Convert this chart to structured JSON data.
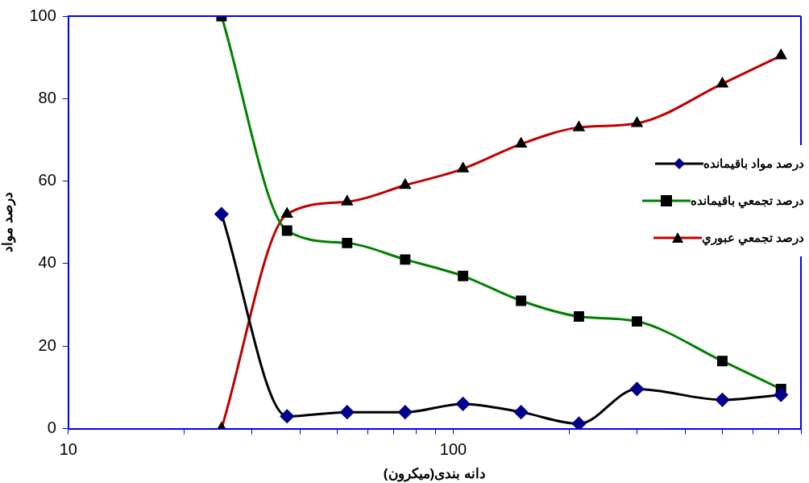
{
  "chart_data": {
    "type": "line",
    "xlabel": "دانه بندی(میکرون)",
    "ylabel": "درصد مواد",
    "log": "x",
    "grid": false,
    "legend": "right",
    "x": [
      25,
      37,
      53,
      75,
      106,
      150,
      212,
      300,
      500,
      710
    ],
    "xlim": [
      10,
      800
    ],
    "xticks": [
      10,
      {
        "value": 20,
        "label": null
      },
      {
        "value": 30,
        "label": null
      },
      {
        "value": 40,
        "label": null
      },
      {
        "value": 50,
        "label": null
      },
      {
        "value": 60,
        "label": null
      },
      {
        "value": 70,
        "label": null
      },
      {
        "value": 80,
        "label": null
      },
      {
        "value": 90,
        "label": null
      },
      100,
      {
        "value": 200,
        "label": null
      },
      {
        "value": 300,
        "label": null
      },
      {
        "value": 400,
        "label": null
      },
      {
        "value": 500,
        "label": null
      },
      {
        "value": 600,
        "label": null
      },
      {
        "value": 700,
        "label": null
      },
      {
        "value": 800,
        "label": null
      }
    ],
    "ylim": [
      0,
      100
    ],
    "yticks": [
      0,
      20,
      40,
      60,
      80,
      100
    ],
    "series": [
      {
        "name": "درصد مواد باقيمانده",
        "color": "#000000",
        "marker": "diamond",
        "values": [
          52,
          3,
          4,
          4,
          6,
          4,
          1.2,
          9.6,
          7,
          8.2
        ]
      },
      {
        "name": "درصد تجمعي باقيمانده",
        "color": "#008000",
        "marker": "square",
        "values": [
          100,
          48,
          45,
          41,
          37,
          31,
          27.2,
          26,
          16.4,
          9.6
        ]
      },
      {
        "name": "درصد تجمعي عبوري",
        "color": "#c00000",
        "marker": "triangle",
        "values": [
          0,
          52,
          55,
          59,
          63,
          69,
          73,
          74,
          83.6,
          90.4
        ]
      }
    ]
  }
}
